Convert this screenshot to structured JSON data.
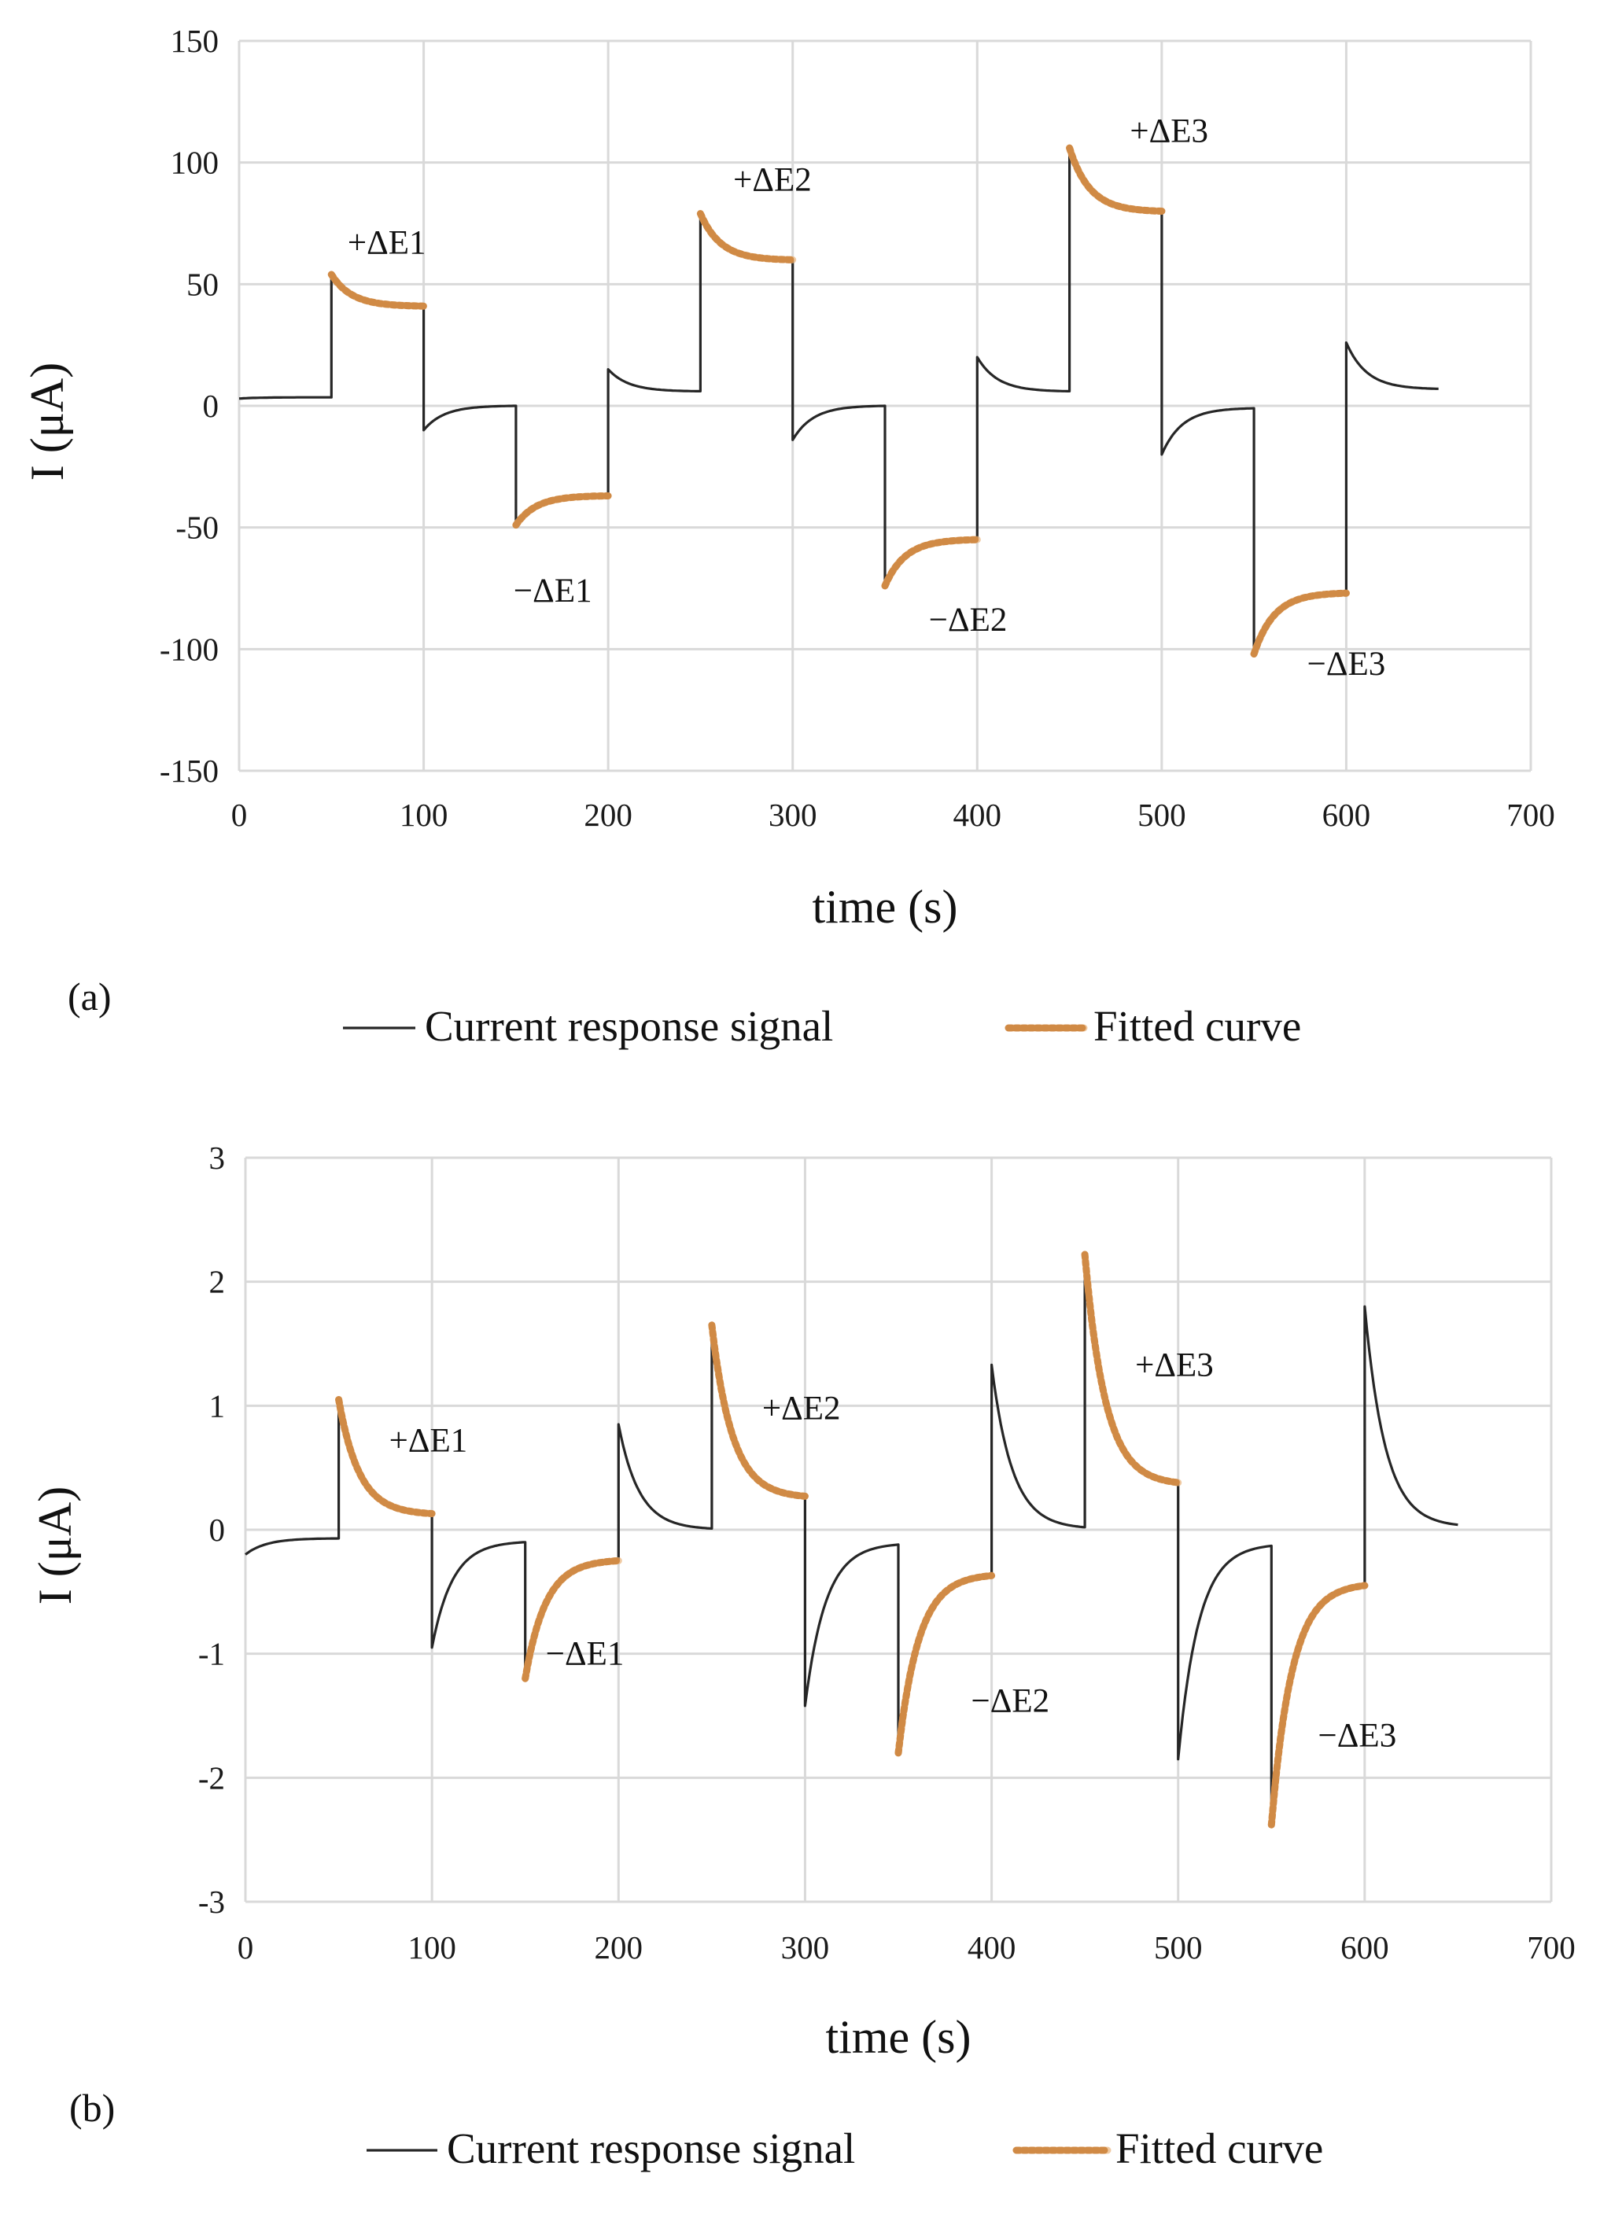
{
  "chart_data": [
    {
      "panel_label": "(a)",
      "type": "line",
      "xlabel": "time (s)",
      "ylabel": "I (μA)",
      "xlim": [
        0,
        700
      ],
      "ylim": [
        -150,
        150
      ],
      "xticks": [
        0,
        100,
        200,
        300,
        400,
        500,
        600,
        700
      ],
      "yticks": [
        -150,
        -100,
        -50,
        0,
        50,
        100,
        150
      ],
      "grid": true,
      "legend": [
        "Current response signal",
        "Fitted curve"
      ],
      "legend_position": "bottom",
      "segments": [
        {
          "t0": 0,
          "t1": 50,
          "start": 3,
          "end": 3.5,
          "fitted": false
        },
        {
          "t0": 50,
          "t1": 100,
          "start": 54,
          "end": 41,
          "fitted": true
        },
        {
          "t0": 100,
          "t1": 150,
          "start": -10,
          "end": 0,
          "fitted": false
        },
        {
          "t0": 150,
          "t1": 200,
          "start": -49,
          "end": -37,
          "fitted": true
        },
        {
          "t0": 200,
          "t1": 250,
          "start": 15,
          "end": 6,
          "fitted": false
        },
        {
          "t0": 250,
          "t1": 300,
          "start": 79,
          "end": 60,
          "fitted": true
        },
        {
          "t0": 300,
          "t1": 350,
          "start": -14,
          "end": 0,
          "fitted": false
        },
        {
          "t0": 350,
          "t1": 400,
          "start": -74,
          "end": -55,
          "fitted": true
        },
        {
          "t0": 400,
          "t1": 450,
          "start": 20,
          "end": 6,
          "fitted": false
        },
        {
          "t0": 450,
          "t1": 500,
          "start": 106,
          "end": 80,
          "fitted": true
        },
        {
          "t0": 500,
          "t1": 550,
          "start": -20,
          "end": -1,
          "fitted": false
        },
        {
          "t0": 550,
          "t1": 600,
          "start": -102,
          "end": -77,
          "fitted": true
        },
        {
          "t0": 600,
          "t1": 650,
          "start": 26,
          "end": 7,
          "fitted": false
        }
      ],
      "annotations": [
        {
          "text": "+ΔE1",
          "x": 80,
          "y": 67
        },
        {
          "text": "−ΔE1",
          "x": 170,
          "y": -76
        },
        {
          "text": "+ΔE2",
          "x": 289,
          "y": 93
        },
        {
          "text": "−ΔE2",
          "x": 395,
          "y": -88
        },
        {
          "text": "+ΔE3",
          "x": 504,
          "y": 113
        },
        {
          "text": "−ΔE3",
          "x": 600,
          "y": -106
        }
      ]
    },
    {
      "panel_label": "(b)",
      "type": "line",
      "xlabel": "time (s)",
      "ylabel": "I (μA)",
      "xlim": [
        0,
        700
      ],
      "ylim": [
        -3,
        3
      ],
      "xticks": [
        0,
        100,
        200,
        300,
        400,
        500,
        600,
        700
      ],
      "yticks": [
        -3,
        -2,
        -1,
        0,
        1,
        2,
        3
      ],
      "grid": true,
      "legend": [
        "Current response signal",
        "Fitted curve"
      ],
      "legend_position": "bottom",
      "segments": [
        {
          "t0": 0,
          "t1": 50,
          "start": -0.2,
          "end": -0.07,
          "fitted": false
        },
        {
          "t0": 50,
          "t1": 100,
          "start": 1.05,
          "end": 0.13,
          "fitted": true
        },
        {
          "t0": 100,
          "t1": 150,
          "start": -0.95,
          "end": -0.1,
          "fitted": false
        },
        {
          "t0": 150,
          "t1": 200,
          "start": -1.2,
          "end": -0.25,
          "fitted": true
        },
        {
          "t0": 200,
          "t1": 250,
          "start": 0.85,
          "end": 0.01,
          "fitted": false
        },
        {
          "t0": 250,
          "t1": 300,
          "start": 1.65,
          "end": 0.27,
          "fitted": true
        },
        {
          "t0": 300,
          "t1": 350,
          "start": -1.42,
          "end": -0.12,
          "fitted": false
        },
        {
          "t0": 350,
          "t1": 400,
          "start": -1.8,
          "end": -0.37,
          "fitted": true
        },
        {
          "t0": 400,
          "t1": 450,
          "start": 1.33,
          "end": 0.02,
          "fitted": false
        },
        {
          "t0": 450,
          "t1": 500,
          "start": 2.22,
          "end": 0.38,
          "fitted": true
        },
        {
          "t0": 500,
          "t1": 550,
          "start": -1.85,
          "end": -0.13,
          "fitted": false
        },
        {
          "t0": 550,
          "t1": 600,
          "start": -2.38,
          "end": -0.45,
          "fitted": true
        },
        {
          "t0": 600,
          "t1": 650,
          "start": 1.8,
          "end": 0.04,
          "fitted": false
        }
      ],
      "annotations": [
        {
          "text": "+ΔE1",
          "x": 98,
          "y": 0.72
        },
        {
          "text": "−ΔE1",
          "x": 182,
          "y": -1.0
        },
        {
          "text": "+ΔE2",
          "x": 298,
          "y": 0.98
        },
        {
          "text": "−ΔE2",
          "x": 410,
          "y": -1.38
        },
        {
          "text": "+ΔE3",
          "x": 498,
          "y": 1.33
        },
        {
          "text": "−ΔE3",
          "x": 596,
          "y": -1.66
        }
      ]
    }
  ],
  "colors": {
    "signal": "#262626",
    "fitted": "#d08a45",
    "grid": "#d9d9d9"
  }
}
